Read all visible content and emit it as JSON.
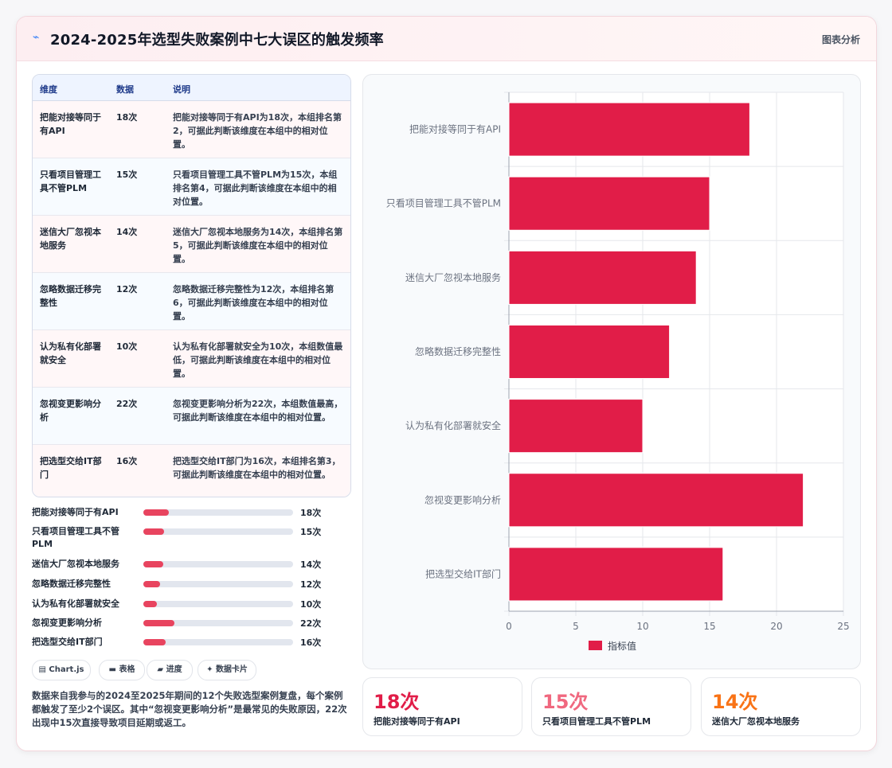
{
  "header": {
    "icon": "chart-icon",
    "title": "2024-2025年选型失败案例中七大误区的触发频率",
    "link": "图表分析"
  },
  "table": {
    "columns": [
      "维度",
      "数据",
      "说明"
    ],
    "rows": [
      [
        "把能对接等同于有API",
        "18次",
        "把能对接等同于有API为18次，本组排名第2，可据此判断该维度在本组中的相对位置。"
      ],
      [
        "只看项目管理工具不管PLM",
        "15次",
        "只看项目管理工具不管PLM为15次，本组排名第4，可据此判断该维度在本组中的相对位置。"
      ],
      [
        "迷信大厂忽视本地服务",
        "14次",
        "迷信大厂忽视本地服务为14次，本组排名第5，可据此判断该维度在本组中的相对位置。"
      ],
      [
        "忽略数据迁移完整性",
        "12次",
        "忽略数据迁移完整性为12次，本组排名第6，可据此判断该维度在本组中的相对位置。"
      ],
      [
        "认为私有化部署就安全",
        "10次",
        "认为私有化部署就安全为10次，本组数值最低，可据此判断该维度在本组中的相对位置。"
      ],
      [
        "忽视变更影响分析",
        "22次",
        "忽视变更影响分析为22次，本组数值最高，可据此判断该维度在本组中的相对位置。"
      ],
      [
        "把选型交给IT部门",
        "16次",
        "把选型交给IT部门为16次，本组排名第3，可据此判断该维度在本组中的相对位置。"
      ]
    ]
  },
  "progress": [
    {
      "label": "把能对接等同于有API",
      "value": "18次",
      "fraction": 0.168
    },
    {
      "label": "只看项目管理工具不管PLM",
      "value": "15次",
      "fraction": 0.14
    },
    {
      "label": "迷信大厂忽视本地服务",
      "value": "14次",
      "fraction": 0.131
    },
    {
      "label": "忽略数据迁移完整性",
      "value": "12次",
      "fraction": 0.112
    },
    {
      "label": "认为私有化部署就安全",
      "value": "10次",
      "fraction": 0.093
    },
    {
      "label": "忽视变更影响分析",
      "value": "22次",
      "fraction": 0.206
    },
    {
      "label": "把选型交给IT部门",
      "value": "16次",
      "fraction": 0.15
    }
  ],
  "chips": [
    {
      "icon": "chip-chart-icon",
      "glyph": "▤",
      "label": "Chart.js"
    },
    {
      "icon": "table-icon",
      "glyph": "▬",
      "label": "表格"
    },
    {
      "icon": "progress-icon",
      "glyph": "▰",
      "label": "进度"
    },
    {
      "icon": "sparkle-icon",
      "glyph": "✦",
      "label": "数据卡片"
    }
  ],
  "note": "数据来自我参与的2024至2025年期间的12个失败选型案例复盘，每个案例都触发了至少2个误区。其中“忽视变更影响分析”是最常见的失败原因，22次出现中15次直接导致项目延期或返工。",
  "stats": [
    {
      "value": "18次",
      "label": "把能对接等同于有API",
      "color": "#e11d48"
    },
    {
      "value": "15次",
      "label": "只看项目管理工具不管PLM",
      "color": "#f0687f"
    },
    {
      "value": "14次",
      "label": "迷信大厂忽视本地服务",
      "color": "#f97316"
    }
  ],
  "colors": {
    "bar": "#e11d48",
    "progress": "#e8445f",
    "grid": "#e5e7eb",
    "axis": "#6b7280"
  },
  "chart_data": {
    "type": "bar",
    "orientation": "horizontal",
    "categories": [
      "把能对接等同于有API",
      "只看项目管理工具不管PLM",
      "迷信大厂忽视本地服务",
      "忽略数据迁移完整性",
      "认为私有化部署就安全",
      "忽视变更影响分析",
      "把选型交给IT部门"
    ],
    "series": [
      {
        "name": "指标值",
        "values": [
          18,
          15,
          14,
          12,
          10,
          22,
          16
        ]
      }
    ],
    "xlim": [
      0,
      25
    ],
    "xticks": [
      "0",
      "5",
      "10",
      "15",
      "20",
      "25"
    ],
    "grid": true,
    "legend": "bottom"
  }
}
